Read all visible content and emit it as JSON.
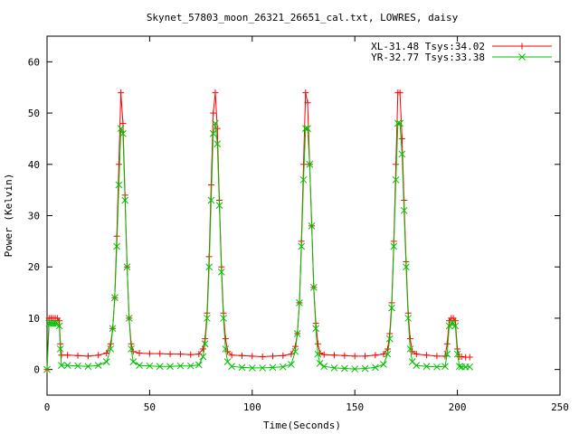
{
  "chart_data": {
    "type": "line",
    "title": "Skynet_57803_moon_26321_26651_cal.txt, LOWRES, daisy",
    "xlabel": "Time(Seconds)",
    "ylabel": "Power (Kelvin)",
    "xlim": [
      0,
      250
    ],
    "ylim": [
      -5,
      65
    ],
    "xticks": [
      "0",
      "50",
      "100",
      "150",
      "200",
      "250"
    ],
    "yticks": [
      "0",
      "10",
      "20",
      "30",
      "40",
      "50",
      "60"
    ],
    "grid": false,
    "legend_position": "top-right",
    "series": [
      {
        "name": "XL-31.48 Tsys:34.02",
        "color": "#ff0000",
        "marker": "plus",
        "x": [
          0,
          1,
          2,
          3,
          4,
          5,
          6,
          6.5,
          7,
          10,
          15,
          20,
          25,
          29,
          31,
          32,
          33,
          34,
          35,
          36,
          37,
          38,
          39,
          40,
          41,
          42,
          45,
          50,
          55,
          60,
          65,
          70,
          74,
          76,
          77,
          78,
          79,
          80,
          81,
          82,
          83,
          84,
          85,
          86,
          87,
          88,
          90,
          95,
          100,
          105,
          110,
          115,
          119,
          121,
          122,
          123,
          124,
          125,
          126,
          127,
          128,
          129,
          130,
          131,
          132,
          133,
          135,
          140,
          145,
          150,
          155,
          160,
          164,
          166,
          167,
          168,
          169,
          170,
          171,
          172,
          173,
          174,
          175,
          176,
          177,
          178,
          180,
          185,
          190,
          194,
          195,
          196,
          197,
          198,
          199,
          200,
          201,
          202,
          204,
          206
        ],
        "values": [
          0,
          10,
          10,
          10,
          10,
          10,
          9.5,
          5,
          2.8,
          2.8,
          2.7,
          2.6,
          2.8,
          3.2,
          5,
          8,
          14,
          26,
          40,
          54,
          48,
          34,
          20,
          10,
          5,
          3.5,
          3.2,
          3.1,
          3.1,
          3.0,
          3.0,
          2.9,
          3.0,
          4,
          6,
          11,
          22,
          36,
          50,
          54,
          47,
          33,
          20,
          11,
          6,
          3.5,
          2.8,
          2.7,
          2.6,
          2.5,
          2.6,
          2.7,
          3.0,
          4.5,
          7,
          13,
          25,
          40,
          54,
          52,
          40,
          28,
          16,
          9,
          5,
          3.2,
          2.9,
          2.8,
          2.7,
          2.6,
          2.6,
          2.8,
          3.0,
          4,
          7,
          13,
          25,
          40,
          54,
          54,
          45,
          33,
          21,
          11,
          6,
          3.5,
          3.0,
          2.8,
          2.6,
          2.6,
          5,
          9.5,
          10,
          10,
          9.5,
          4,
          2.5,
          2.5,
          2.4,
          2.4
        ]
      },
      {
        "name": "YR-32.77 Tsys:33.38",
        "color": "#00c000",
        "marker": "cross",
        "x": [
          0,
          1,
          2,
          3,
          4,
          5,
          6,
          6.5,
          7,
          10,
          15,
          20,
          25,
          29,
          31,
          32,
          33,
          34,
          35,
          36,
          37,
          38,
          39,
          40,
          41,
          42,
          45,
          50,
          55,
          60,
          65,
          70,
          74,
          76,
          77,
          78,
          79,
          80,
          81,
          82,
          83,
          84,
          85,
          86,
          87,
          88,
          90,
          95,
          100,
          105,
          110,
          115,
          119,
          121,
          122,
          123,
          124,
          125,
          126,
          127,
          128,
          129,
          130,
          131,
          132,
          133,
          135,
          140,
          145,
          150,
          155,
          160,
          164,
          166,
          167,
          168,
          169,
          170,
          171,
          172,
          173,
          174,
          175,
          176,
          177,
          178,
          180,
          185,
          190,
          194,
          195,
          196,
          197,
          198,
          199,
          200,
          201,
          202,
          204,
          206
        ],
        "values": [
          0,
          9,
          9,
          9,
          9,
          9,
          8.5,
          4,
          0.8,
          0.8,
          0.7,
          0.6,
          0.8,
          1.5,
          4,
          8,
          14,
          24,
          36,
          47,
          46,
          33,
          20,
          10,
          4,
          1.5,
          0.8,
          0.7,
          0.6,
          0.6,
          0.7,
          0.7,
          0.9,
          2.5,
          5,
          10,
          20,
          33,
          46,
          48,
          44,
          32,
          19,
          10,
          4,
          1.5,
          0.6,
          0.4,
          0.3,
          0.3,
          0.4,
          0.5,
          1.0,
          3.5,
          7,
          13,
          24,
          37,
          47,
          47,
          40,
          28,
          16,
          8,
          3,
          1.2,
          0.6,
          0.3,
          0.2,
          0.1,
          0.2,
          0.4,
          1.0,
          3,
          6,
          12,
          24,
          37,
          48,
          48,
          42,
          31,
          20,
          10,
          4,
          1.5,
          0.8,
          0.6,
          0.5,
          0.6,
          3,
          8.5,
          9,
          9,
          8.5,
          3,
          0.6,
          0.5,
          0.5,
          0.5
        ]
      }
    ]
  }
}
